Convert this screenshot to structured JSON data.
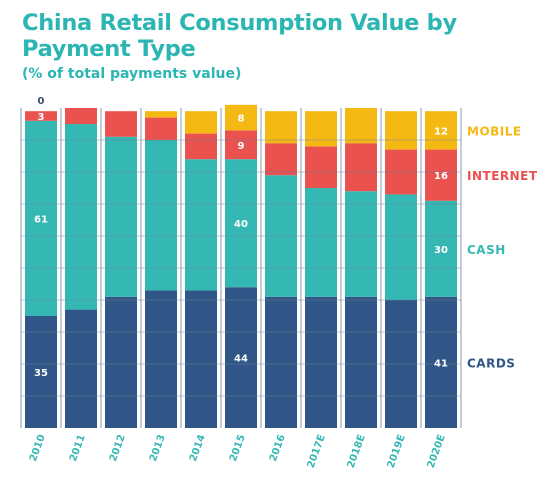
{
  "chart_data": {
    "type": "bar",
    "stacked": true,
    "title": "China Retail Consumption Value by Payment Type",
    "subtitle": "(% of total payments value)",
    "xlabel": "",
    "ylabel": "",
    "ylim": [
      0,
      100
    ],
    "legend_placement": "right",
    "grid": true,
    "categories": [
      "2010",
      "2011",
      "2012",
      "2013",
      "2014",
      "2015",
      "2016",
      "2017E",
      "2018E",
      "2019E",
      "2020E"
    ],
    "series": [
      {
        "name": "CARDS",
        "color": "#2f5687",
        "values": [
          35,
          37,
          41,
          43,
          43,
          44,
          41,
          41,
          41,
          40,
          41
        ]
      },
      {
        "name": "CASH",
        "color": "#35b8b3",
        "values": [
          61,
          58,
          50,
          47,
          41,
          40,
          38,
          34,
          33,
          33,
          30
        ]
      },
      {
        "name": "INTERNET",
        "color": "#e9524f",
        "values": [
          3,
          5,
          8,
          7,
          8,
          9,
          10,
          13,
          15,
          14,
          16
        ]
      },
      {
        "name": "MOBILE",
        "color": "#f5b914",
        "values": [
          0,
          0,
          0,
          2,
          7,
          8,
          10,
          11,
          11,
          12,
          12
        ]
      }
    ],
    "data_labels": [
      {
        "series": "MOBILE",
        "category": "2010",
        "text": "0"
      },
      {
        "series": "INTERNET",
        "category": "2010",
        "text": "3"
      },
      {
        "series": "CASH",
        "category": "2010",
        "text": "61"
      },
      {
        "series": "CARDS",
        "category": "2010",
        "text": "35"
      },
      {
        "series": "MOBILE",
        "category": "2015",
        "text": "8"
      },
      {
        "series": "INTERNET",
        "category": "2015",
        "text": "9"
      },
      {
        "series": "CASH",
        "category": "2015",
        "text": "40"
      },
      {
        "series": "CARDS",
        "category": "2015",
        "text": "44"
      },
      {
        "series": "MOBILE",
        "category": "2020E",
        "text": "12"
      },
      {
        "series": "INTERNET",
        "category": "2020E",
        "text": "16"
      },
      {
        "series": "CASH",
        "category": "2020E",
        "text": "30"
      },
      {
        "series": "CARDS",
        "category": "2020E",
        "text": "41"
      }
    ],
    "gridline_color": "#6b8299",
    "title_color": "#2bb5b3",
    "tick_label_color": "#35b8b3"
  }
}
